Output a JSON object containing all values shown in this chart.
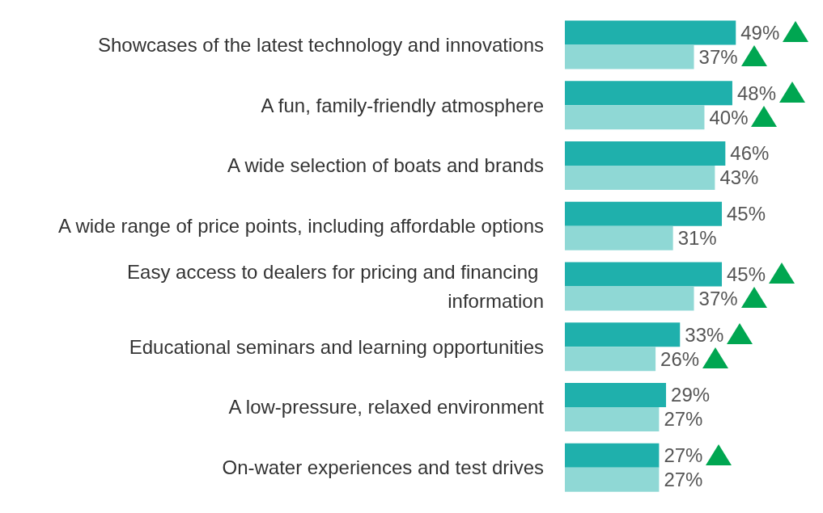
{
  "chart_data": {
    "type": "bar",
    "orientation": "horizontal",
    "categories": [
      "Showcases of the latest technology and innovations",
      "A fun, family-friendly atmosphere",
      "A wide selection of boats and brands",
      "A wide range of price points, including affordable options",
      "Easy access to dealers for pricing and financing information",
      "Educational seminars and learning opportunities",
      "A low-pressure, relaxed environment",
      "On-water experiences and test drives"
    ],
    "series": [
      {
        "color": "#1fb0ac",
        "values": [
          49,
          48,
          46,
          45,
          45,
          33,
          29,
          27
        ],
        "value_labels": [
          "49%",
          "48%",
          "46%",
          "45%",
          "45%",
          "33%",
          "29%",
          "27%"
        ]
      },
      {
        "color": "#8fd8d5",
        "values": [
          37,
          40,
          43,
          31,
          37,
          26,
          27,
          27
        ],
        "value_labels": [
          "37%",
          "40%",
          "43%",
          "31%",
          "37%",
          "26%",
          "27%",
          "27%"
        ]
      }
    ]
  }
}
